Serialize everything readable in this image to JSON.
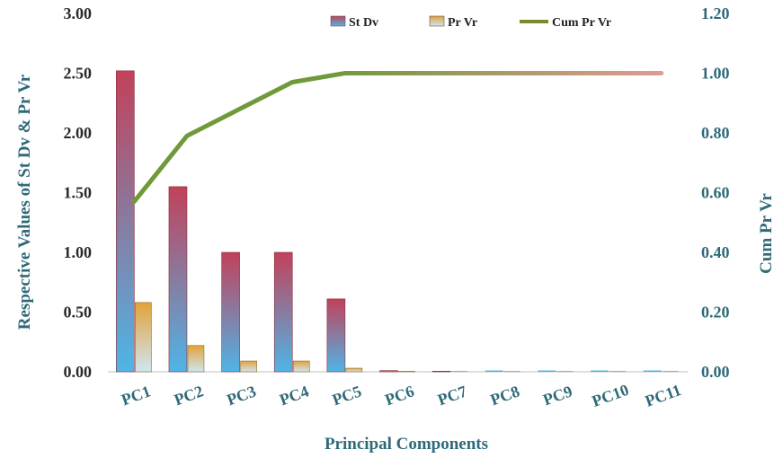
{
  "chart_data": {
    "type": "bar",
    "categories": [
      "PC1",
      "PC2",
      "PC3",
      "PC4",
      "PC5",
      "PC6",
      "PC7",
      "PC8",
      "PC9",
      "PC10",
      "PC11"
    ],
    "series": [
      {
        "name": "St Dv",
        "type": "bar",
        "axis": "left",
        "values": [
          2.52,
          1.55,
          1.0,
          1.0,
          0.61,
          0.01,
          0.005,
          0.0,
          0.0,
          0.0,
          0.0
        ]
      },
      {
        "name": "Pr Vr",
        "type": "bar",
        "axis": "left",
        "values": [
          0.58,
          0.22,
          0.09,
          0.09,
          0.03,
          0.004,
          0.002,
          0.0,
          0.0,
          0.0,
          0.0
        ]
      },
      {
        "name": "Cum Pr Vr",
        "type": "line",
        "axis": "right",
        "values": [
          0.57,
          0.79,
          0.88,
          0.97,
          1.0,
          1.0,
          1.0,
          1.0,
          1.0,
          1.0,
          1.0
        ]
      }
    ],
    "xlabel": "Principal Components",
    "ylabel_left": "Respective Values of St Dv & Pr Vr",
    "ylabel_right": "Cum Pr Vr",
    "ylim_left": [
      0,
      3.0
    ],
    "ylim_right": [
      0,
      1.2
    ],
    "yticks_left": [
      "0.00",
      "0.50",
      "1.00",
      "1.50",
      "2.00",
      "2.50",
      "3.00"
    ],
    "yticks_right": [
      "0.00",
      "0.20",
      "0.40",
      "0.60",
      "0.80",
      "1.00",
      "1.20"
    ],
    "grid": false,
    "legend_position": "top-right",
    "colors": {
      "stdv_top": "#c2415a",
      "stdv_bottom": "#4fb5e6",
      "prvr_top": "#e3a23a",
      "prvr_bottom": "#cfe6f2",
      "line_start": "#6f9a3a",
      "line_end": "#e09a92",
      "left_tick": "#2b2b2b",
      "right_tick": "#2f6a78",
      "axis_title": "#2f6a78"
    }
  }
}
